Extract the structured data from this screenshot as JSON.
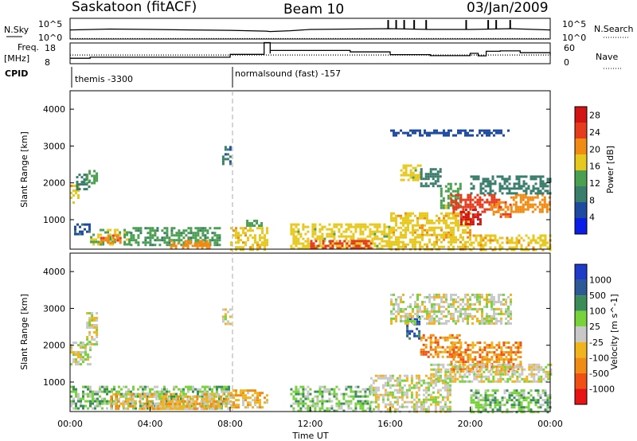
{
  "header": {
    "station": "Saskatoon (fitACF)",
    "beam": "Beam 10",
    "date": "03/Jan/2009"
  },
  "top_labels": {
    "nsky": "N.Sky",
    "nsky_top": "10^5",
    "nsky_bottom": "10^0",
    "freq": "Freq.",
    "freq_unit": "[MHz]",
    "freq_top": "18",
    "freq_bottom": "8",
    "cpid": "CPID",
    "nsearch": "N.Search",
    "nsearch_top": "10^5",
    "nsearch_bottom": "10^0",
    "nave": "Nave",
    "nave_top": "60",
    "nave_bottom": "0",
    "cpid_segments": [
      {
        "label": "themis -3300",
        "start_hour": 0
      },
      {
        "label": "normalsound (fast) -157",
        "start_hour": 8
      }
    ]
  },
  "chart_data": [
    {
      "type": "line",
      "panel": "noise",
      "series": [
        {
          "name": "N.Sky",
          "style": "solid",
          "x": [
            0,
            2,
            4,
            6,
            8,
            9.8,
            10,
            11,
            12,
            14,
            16,
            18,
            20,
            22,
            24
          ],
          "y": [
            2.2,
            2.4,
            2.3,
            2.2,
            2.1,
            1.9,
            1.8,
            2.0,
            2.3,
            2.4,
            2.5,
            2.3,
            2.3,
            2.5,
            2.2
          ]
        },
        {
          "name": "N.Search",
          "style": "dotted",
          "x": [
            0,
            24
          ],
          "y": [
            0.1,
            0.1
          ]
        }
      ],
      "ylim": [
        0,
        5
      ],
      "spikes_x": [
        15.9,
        16.3,
        16.7,
        17.2,
        17.8,
        19.8,
        20.9,
        21.3,
        22.0
      ]
    },
    {
      "type": "line",
      "panel": "frequency",
      "series": [
        {
          "name": "Freq.",
          "style": "solid",
          "x": [
            0,
            1,
            5,
            8,
            9.7,
            9.7,
            10,
            10,
            11,
            14,
            16,
            18,
            19.3,
            20,
            20.4,
            20.8,
            21.5,
            22.5,
            24
          ],
          "y": [
            10.6,
            11.1,
            11.1,
            12.5,
            12.6,
            18.2,
            12.9,
            14.4,
            14.4,
            13.7,
            12.4,
            11.9,
            11.9,
            13,
            11.8,
            14,
            14.2,
            13.3,
            12
          ]
        },
        {
          "name": "Nave",
          "style": "dotted",
          "x": [
            0,
            24
          ],
          "y": [
            12.2,
            12.2
          ]
        }
      ],
      "ylim": [
        8,
        18
      ],
      "yticks": [
        8,
        18
      ],
      "y2ticks": [
        0,
        60
      ]
    },
    {
      "type": "heatmap",
      "panel": "power",
      "ylabel": "Slant Range [km]",
      "ylim": [
        200,
        4500
      ],
      "yticks": [
        1000,
        2000,
        3000,
        4000
      ],
      "xlim": [
        0,
        24
      ],
      "colorbar": {
        "label": "Power [dB]",
        "ticks": [
          4,
          8,
          12,
          16,
          20,
          24,
          28
        ],
        "range": [
          0,
          30
        ],
        "colors": [
          "#0a1ee6",
          "#1e4aa0",
          "#3a7d6a",
          "#4aa050",
          "#e6c81e",
          "#f08c14",
          "#e63c1e",
          "#d21414"
        ]
      },
      "patches": [
        {
          "t0": 0.0,
          "t1": 0.4,
          "r0": 1450,
          "r1": 1950,
          "v": 18
        },
        {
          "t0": 0.3,
          "t1": 0.9,
          "r0": 1800,
          "r1": 2250,
          "v": 10
        },
        {
          "t0": 0.8,
          "t1": 1.3,
          "r0": 2000,
          "r1": 2350,
          "v": 14
        },
        {
          "t0": 0.2,
          "t1": 1.0,
          "r0": 600,
          "r1": 900,
          "v": 7
        },
        {
          "t0": 1.0,
          "t1": 3.0,
          "r0": 350,
          "r1": 750,
          "v": 15
        },
        {
          "t0": 1.5,
          "t1": 2.5,
          "r0": 350,
          "r1": 600,
          "v": 22
        },
        {
          "t0": 3.0,
          "t1": 7.5,
          "r0": 300,
          "r1": 800,
          "v": 12
        },
        {
          "t0": 5.0,
          "t1": 7.0,
          "r0": 250,
          "r1": 450,
          "v": 20
        },
        {
          "t0": 7.6,
          "t1": 8.0,
          "r0": 2500,
          "r1": 3000,
          "v": 8
        },
        {
          "t0": 8.0,
          "t1": 9.8,
          "r0": 200,
          "r1": 800,
          "v": 18
        },
        {
          "t0": 8.8,
          "t1": 9.6,
          "r0": 850,
          "r1": 1000,
          "v": 14
        },
        {
          "t0": 11.0,
          "t1": 16.0,
          "r0": 200,
          "r1": 900,
          "v": 16
        },
        {
          "t0": 12.0,
          "t1": 15.0,
          "r0": 200,
          "r1": 450,
          "v": 24
        },
        {
          "t0": 16.0,
          "t1": 20.0,
          "r0": 200,
          "r1": 1200,
          "v": 18
        },
        {
          "t0": 16.5,
          "t1": 17.5,
          "r0": 2100,
          "r1": 2500,
          "v": 16
        },
        {
          "t0": 17.5,
          "t1": 18.5,
          "r0": 1900,
          "r1": 2400,
          "v": 10
        },
        {
          "t0": 18.5,
          "t1": 19.5,
          "r0": 1300,
          "r1": 2000,
          "v": 14
        },
        {
          "t0": 19.0,
          "t1": 21.5,
          "r0": 1200,
          "r1": 1700,
          "v": 25
        },
        {
          "t0": 19.5,
          "t1": 20.5,
          "r0": 900,
          "r1": 1300,
          "v": 27
        },
        {
          "t0": 21.0,
          "t1": 22.0,
          "r0": 1100,
          "r1": 1500,
          "v": 22
        },
        {
          "t0": 22.0,
          "t1": 24.0,
          "r0": 1200,
          "r1": 1700,
          "v": 20
        },
        {
          "t0": 20.0,
          "t1": 24.0,
          "r0": 1700,
          "r1": 2200,
          "v": 9
        },
        {
          "t0": 16.0,
          "t1": 22.0,
          "r0": 3300,
          "r1": 3450,
          "v": 6
        },
        {
          "t0": 20.0,
          "t1": 24.0,
          "r0": 200,
          "r1": 600,
          "v": 18
        }
      ]
    },
    {
      "type": "heatmap",
      "panel": "velocity",
      "ylabel": "Slant Range [km]",
      "ylim": [
        200,
        4500
      ],
      "yticks": [
        1000,
        2000,
        3000,
        4000
      ],
      "xlim": [
        0,
        24
      ],
      "xticks": [
        "00:00",
        "04:00",
        "08:00",
        "12:00",
        "16:00",
        "20:00",
        "00:00"
      ],
      "xlabel": "Time UT",
      "colorbar": {
        "label": "Velocity [m s^-1]",
        "ticks": [
          "1000",
          "500",
          "100",
          "25",
          "-25",
          "-100",
          "-500",
          "-1000"
        ],
        "colors": [
          "#1e3cc8",
          "#2d5a96",
          "#3c8c5a",
          "#78d23c",
          "#c8c8c8",
          "#f0b41e",
          "#f08c14",
          "#f05014",
          "#e61414"
        ]
      },
      "patches": [
        {
          "t0": 0.0,
          "t1": 1.0,
          "r0": 1500,
          "r1": 2100,
          "v": 4
        },
        {
          "t0": 0.8,
          "t1": 1.3,
          "r0": 2000,
          "r1": 2900,
          "v": 4
        },
        {
          "t0": 0.0,
          "t1": 8.0,
          "r0": 300,
          "r1": 900,
          "v": 5
        },
        {
          "t0": 2.0,
          "t1": 8.0,
          "r0": 300,
          "r1": 700,
          "v": 3
        },
        {
          "t0": 4.0,
          "t1": 7.5,
          "r0": 250,
          "r1": 500,
          "v": 3
        },
        {
          "t0": 7.6,
          "t1": 8.0,
          "r0": 2600,
          "r1": 3000,
          "v": 4
        },
        {
          "t0": 8.0,
          "t1": 9.8,
          "r0": 300,
          "r1": 800,
          "v": 3
        },
        {
          "t0": 11.0,
          "t1": 15.0,
          "r0": 200,
          "r1": 900,
          "v": 5
        },
        {
          "t0": 15.0,
          "t1": 19.0,
          "r0": 200,
          "r1": 1200,
          "v": 4
        },
        {
          "t0": 16.8,
          "t1": 17.5,
          "r0": 2200,
          "r1": 2800,
          "v": 7
        },
        {
          "t0": 17.5,
          "t1": 19.5,
          "r0": 1700,
          "r1": 2300,
          "v": 2
        },
        {
          "t0": 19.0,
          "t1": 22.5,
          "r0": 1300,
          "r1": 2100,
          "v": 2
        },
        {
          "t0": 20.0,
          "t1": 24.0,
          "r0": 200,
          "r1": 800,
          "v": 5
        },
        {
          "t0": 18.0,
          "t1": 24.0,
          "r0": 1000,
          "r1": 1500,
          "v": 4
        },
        {
          "t0": 16.0,
          "t1": 22.0,
          "r0": 2600,
          "r1": 3400,
          "v": 4
        }
      ]
    }
  ]
}
